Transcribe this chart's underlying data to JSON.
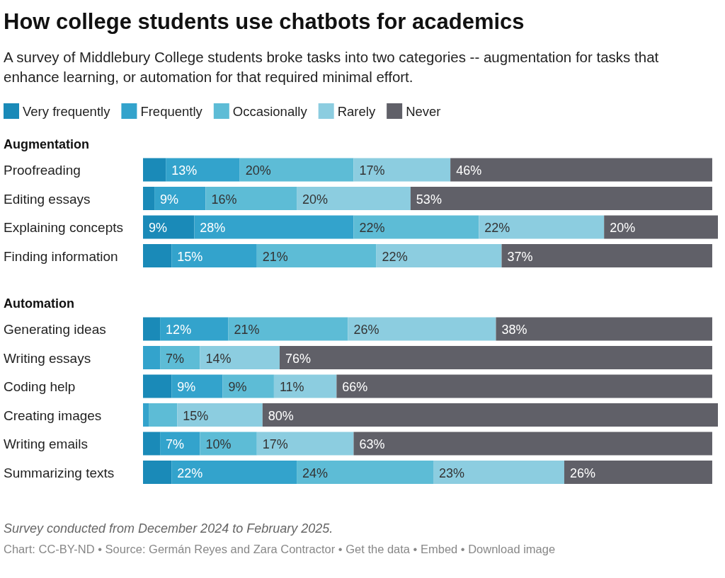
{
  "chart_data": {
    "type": "bar",
    "orientation": "horizontal",
    "stacked": true,
    "title": "How college students use chatbots for academics",
    "subtitle": "A survey of Middlebury College students broke tasks into two categories -- augmentation for tasks that enhance learning, or automation for that required minimal effort.",
    "categories": [
      "Proofreading",
      "Editing essays",
      "Explaining concepts",
      "Finding information",
      null,
      "Generating ideas",
      "Writing essays",
      "Coding help",
      "Creating images",
      "Writing emails",
      "Summarizing texts"
    ],
    "series": [
      {
        "name": "Very frequently",
        "color": "#1a8ab8",
        "values": [
          4,
          2,
          9,
          5,
          null,
          3,
          0,
          5,
          0,
          3,
          5
        ],
        "value_labels": [
          null,
          null,
          "9%",
          null,
          null,
          null,
          null,
          null,
          null,
          null,
          null
        ]
      },
      {
        "name": "Frequently",
        "color": "#33a3cc",
        "values": [
          13,
          9,
          28,
          15,
          null,
          12,
          3,
          9,
          1,
          7,
          22
        ],
        "value_labels": [
          "13%",
          "9%",
          "28%",
          "15%",
          null,
          "12%",
          null,
          "9%",
          null,
          "7%",
          "22%"
        ]
      },
      {
        "name": "Occasionally",
        "color": "#5dbcd6",
        "values": [
          20,
          16,
          22,
          21,
          null,
          21,
          7,
          9,
          5,
          10,
          24
        ],
        "value_labels": [
          "20%",
          "16%",
          "22%",
          "21%",
          null,
          "21%",
          "7%",
          "9%",
          null,
          "10%",
          "24%"
        ]
      },
      {
        "name": "Rarely",
        "color": "#8ccde0",
        "values": [
          17,
          20,
          22,
          22,
          null,
          26,
          14,
          11,
          15,
          17,
          23
        ],
        "value_labels": [
          "17%",
          "20%",
          "22%",
          "22%",
          null,
          "26%",
          "14%",
          "11%",
          "15%",
          "17%",
          "23%"
        ]
      },
      {
        "name": "Never",
        "color": "#606068",
        "values": [
          46,
          53,
          20,
          37,
          null,
          38,
          76,
          66,
          80,
          63,
          26
        ],
        "value_labels": [
          "46%",
          "53%",
          "20%",
          "37%",
          null,
          "38%",
          "76%",
          "66%",
          "80%",
          "63%",
          "26%"
        ]
      }
    ],
    "xlim": [
      0,
      101
    ],
    "tick_labels": false,
    "legend": "top",
    "annotations": [
      "Augmentation",
      "Automation",
      "Survey conducted from December 2024 to February 2025.",
      "Chart: CC-BY-ND • Source: Germán Reyes and Zara Contractor • Get the data • Embed • Download image"
    ]
  }
}
